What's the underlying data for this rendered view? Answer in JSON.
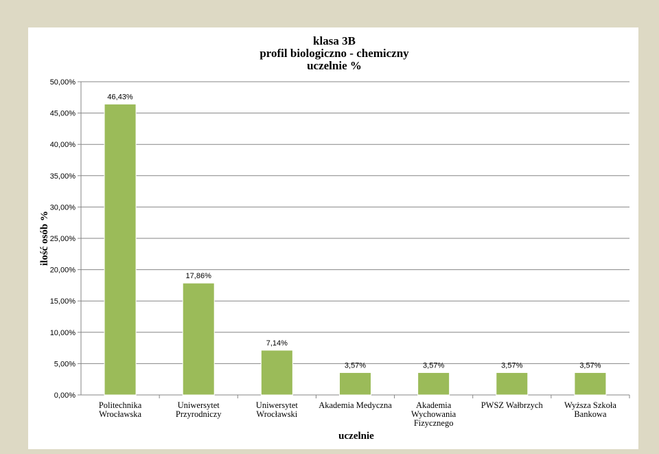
{
  "chart_data": {
    "type": "bar",
    "title": [
      "klasa 3B",
      "profil biologiczno - chemiczny",
      "uczelnie %"
    ],
    "xlabel": "uczelnie",
    "ylabel": "ilość osób %",
    "categories": [
      [
        "Politechnika",
        "Wrocławska"
      ],
      [
        "Uniwersytet",
        "Przyrodniczy"
      ],
      [
        "Uniwersytet",
        "Wrocławski"
      ],
      [
        "Akademia Medyczna"
      ],
      [
        "Akademia",
        "Wychowania",
        "Fizycznego"
      ],
      [
        "PWSZ Wałbrzych"
      ],
      [
        "Wyższa Szkoła",
        "Bankowa"
      ]
    ],
    "values": [
      46.43,
      17.86,
      7.14,
      3.57,
      3.57,
      3.57,
      3.57
    ],
    "value_labels": [
      "46,43%",
      "17,86%",
      "7,14%",
      "3,57%",
      "3,57%",
      "3,57%",
      "3,57%"
    ],
    "ylim": [
      0,
      50
    ],
    "yticks": [
      0,
      5,
      10,
      15,
      20,
      25,
      30,
      35,
      40,
      45,
      50
    ],
    "ytick_labels": [
      "0,00%",
      "5,00%",
      "10,00%",
      "15,00%",
      "20,00%",
      "25,00%",
      "30,00%",
      "35,00%",
      "40,00%",
      "45,00%",
      "50,00%"
    ],
    "grid": true,
    "legend": "none",
    "bar_color": "#9bbb59",
    "gridline_color": "#868686",
    "page_background": "#ddd9c4",
    "plot_background": "#ffffff"
  }
}
